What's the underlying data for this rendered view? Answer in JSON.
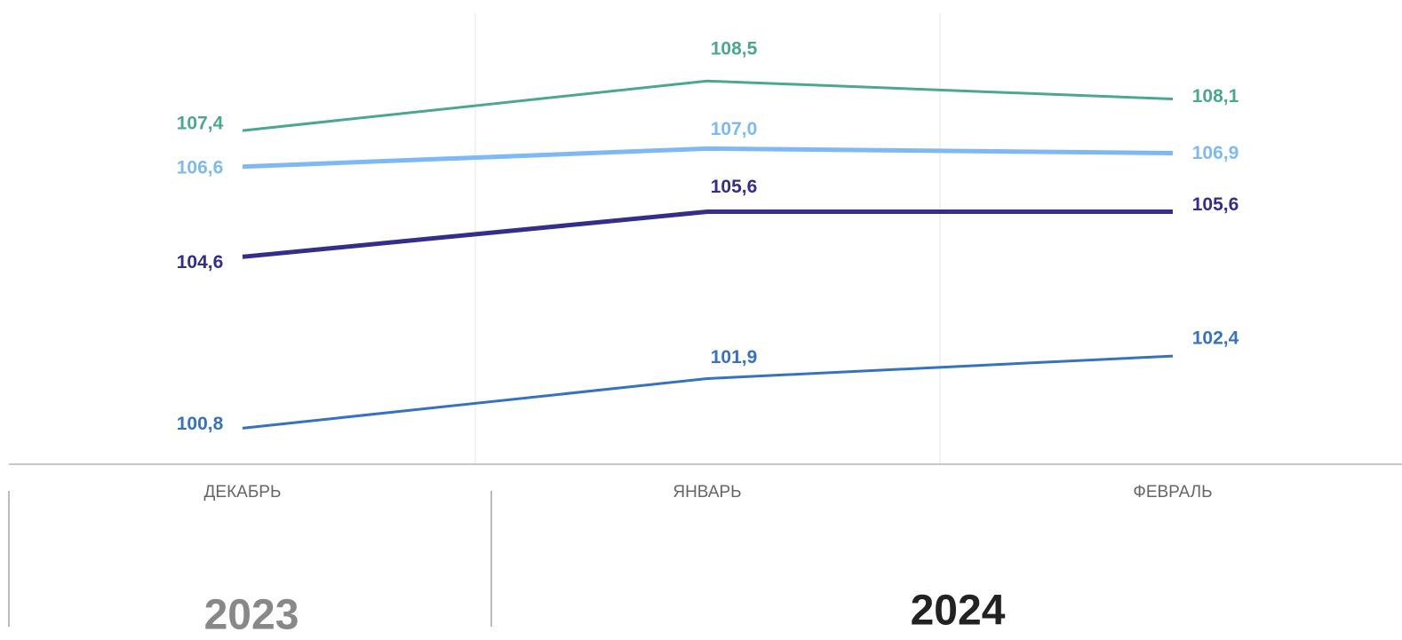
{
  "chart_data": {
    "type": "line",
    "categories": [
      "ДЕКАБРЬ",
      "ЯНВАРЬ",
      "ФЕВРАЛЬ"
    ],
    "series": [
      {
        "color": "#4aa88f",
        "values": [
          107.4,
          108.5,
          108.1
        ],
        "value_labels": [
          "107,4",
          "108,5",
          "108,1"
        ]
      },
      {
        "color": "#7dbaf5",
        "values": [
          106.6,
          107.0,
          106.9
        ],
        "value_labels": [
          "106,6",
          "107,0",
          "106,9"
        ]
      },
      {
        "color": "#332e8c",
        "values": [
          104.6,
          105.6,
          105.6
        ],
        "value_labels": [
          "104,6",
          "105,6",
          "105,6"
        ]
      },
      {
        "color": "#3572c2",
        "values": [
          100.8,
          101.9,
          102.4
        ],
        "value_labels": [
          "100,8",
          "101,9",
          "102,4"
        ]
      }
    ],
    "ylim": [
      100,
      110
    ],
    "groups": [
      "2023",
      "2024"
    ]
  }
}
